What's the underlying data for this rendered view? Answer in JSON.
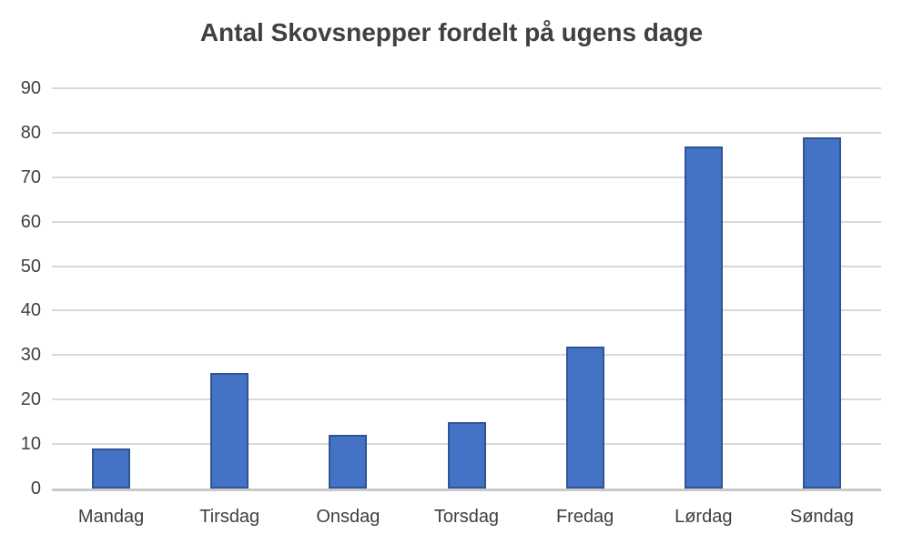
{
  "chart_data": {
    "type": "bar",
    "title": "Antal Skovsnepper fordelt på ugens dage",
    "categories": [
      "Mandag",
      "Tirsdag",
      "Onsdag",
      "Torsdag",
      "Fredag",
      "Lørdag",
      "Søndag"
    ],
    "values": [
      9,
      26,
      12,
      15,
      32,
      77,
      79
    ],
    "xlabel": "",
    "ylabel": "",
    "ylim": [
      0,
      90
    ],
    "yticks": [
      0,
      10,
      20,
      30,
      40,
      50,
      60,
      70,
      80,
      90
    ],
    "grid": true,
    "legend_position": "none",
    "colors": {
      "bar_fill": "#4472C4",
      "bar_border": "#2F5597",
      "gridline": "#D9D9D9",
      "axis_line": "#C9C9C9",
      "title_text": "#404040",
      "tick_text": "#404040"
    }
  }
}
